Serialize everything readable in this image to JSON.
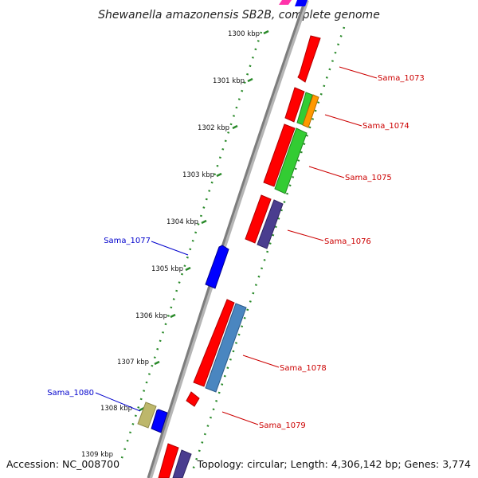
{
  "title": "Shewanella amazonensis SB2B, complete genome",
  "footer": {
    "accession": "Accession: NC_008700",
    "summary": "Topology: circular; Length: 4,306,142 bp; Genes: 3,774"
  },
  "ticks": [
    "1300 kbp",
    "1301 kbp",
    "1302 kbp",
    "1303 kbp",
    "1304 kbp",
    "1305 kbp",
    "1306 kbp",
    "1307 kbp",
    "1308 kbp",
    "1309 kbp"
  ],
  "gene_labels": {
    "sama_1073": "Sama_1073",
    "sama_1074": "Sama_1074",
    "sama_1075": "Sama_1075",
    "sama_1076": "Sama_1076",
    "sama_1077": "Sama_1077",
    "sama_1078": "Sama_1078",
    "sama_1079": "Sama_1079",
    "sama_1080": "Sama_1080"
  },
  "colors": {
    "forward_label": "#cc0000",
    "reverse_label": "#0000cc",
    "backbone": "#8a8a8a",
    "dotted_ring": "#2a8a2a",
    "red_feature": "#ff0000",
    "green_feature": "#33cc33",
    "orange_feature": "#ff9900",
    "purple_feature": "#4a3d8f",
    "steelblue_feature": "#4a86c0",
    "blue_feature": "#0000ff",
    "khaki_feature": "#bdb76b",
    "magenta_feature": "#ff33aa"
  }
}
